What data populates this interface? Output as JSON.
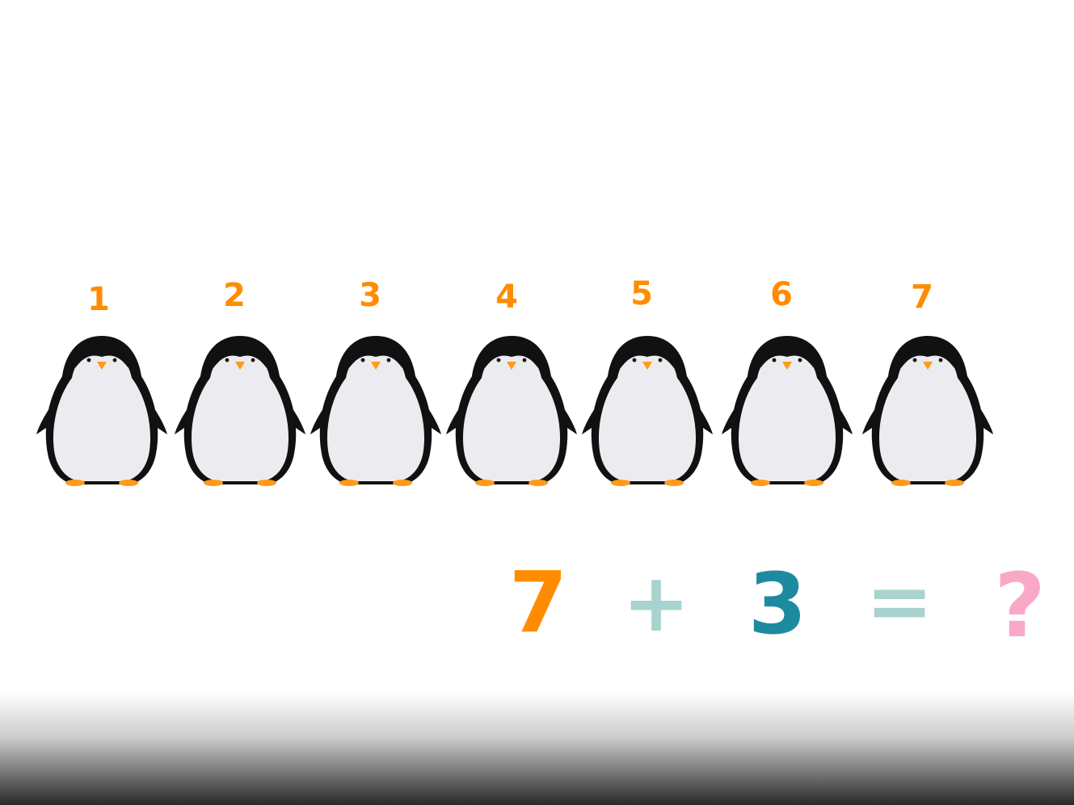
{
  "penguins": [
    {
      "number": "1"
    },
    {
      "number": "2"
    },
    {
      "number": "3"
    },
    {
      "number": "4"
    },
    {
      "number": "5"
    },
    {
      "number": "6"
    },
    {
      "number": "7"
    }
  ],
  "equation": {
    "first_addend": "7",
    "operator": "+",
    "second_addend": "3",
    "equals": "=",
    "answer": "?"
  },
  "colors": {
    "number_orange": "#FF8C00",
    "plus_teal": "#A8D3CF",
    "three_blue": "#1E8AA0",
    "equals_teal": "#A8D3CF",
    "question_pink": "#F9A8C8",
    "penguin_black": "#111111",
    "penguin_belly": "#ECECF0",
    "penguin_feet": "#FF9A1A"
  }
}
